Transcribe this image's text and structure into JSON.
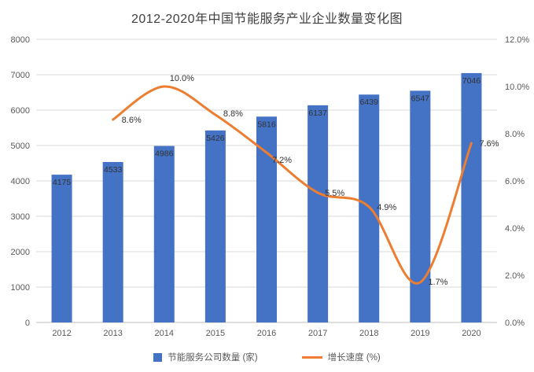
{
  "chart_data": {
    "type": "combo",
    "title": "2012-2020年中国节能服务产业企业数量变化图",
    "categories": [
      "2012",
      "2013",
      "2014",
      "2015",
      "2016",
      "2017",
      "2018",
      "2019",
      "2020"
    ],
    "series": [
      {
        "name": "节能服务公司数量 (家)",
        "chart_type": "bar",
        "axis": "left",
        "color": "#4472C4",
        "values": [
          4175,
          4533,
          4986,
          5426,
          5816,
          6137,
          6439,
          6547,
          7046
        ],
        "labels": [
          "4175",
          "4533",
          "4986",
          "5426",
          "5816",
          "6137",
          "6439",
          "6547",
          "7046"
        ]
      },
      {
        "name": "增长速度 (%)",
        "chart_type": "line",
        "axis": "right",
        "color": "#ED7D31",
        "values": [
          null,
          8.6,
          10.0,
          8.8,
          7.2,
          5.5,
          4.9,
          1.7,
          7.6
        ],
        "labels": [
          null,
          "8.6%",
          "10.0%",
          "8.8%",
          "7.2%",
          "5.5%",
          "4.9%",
          "1.7%",
          "7.6%"
        ]
      }
    ],
    "left_axis": {
      "min": 0,
      "max": 8000,
      "step": 1000,
      "tick_labels": [
        "0",
        "1000",
        "2000",
        "3000",
        "4000",
        "5000",
        "6000",
        "7000",
        "8000"
      ]
    },
    "right_axis": {
      "min": 0,
      "max": 12,
      "step": 2,
      "tick_labels": [
        "0.0%",
        "2.0%",
        "4.0%",
        "6.0%",
        "8.0%",
        "10.0%",
        "12.0%"
      ]
    },
    "grid": true,
    "legend_position": "bottom",
    "colors": {
      "bar": "#4472C4",
      "line": "#ED7D31",
      "gridline": "#d9d9d9",
      "tick_text": "#595959",
      "label_text": "#333333"
    }
  }
}
